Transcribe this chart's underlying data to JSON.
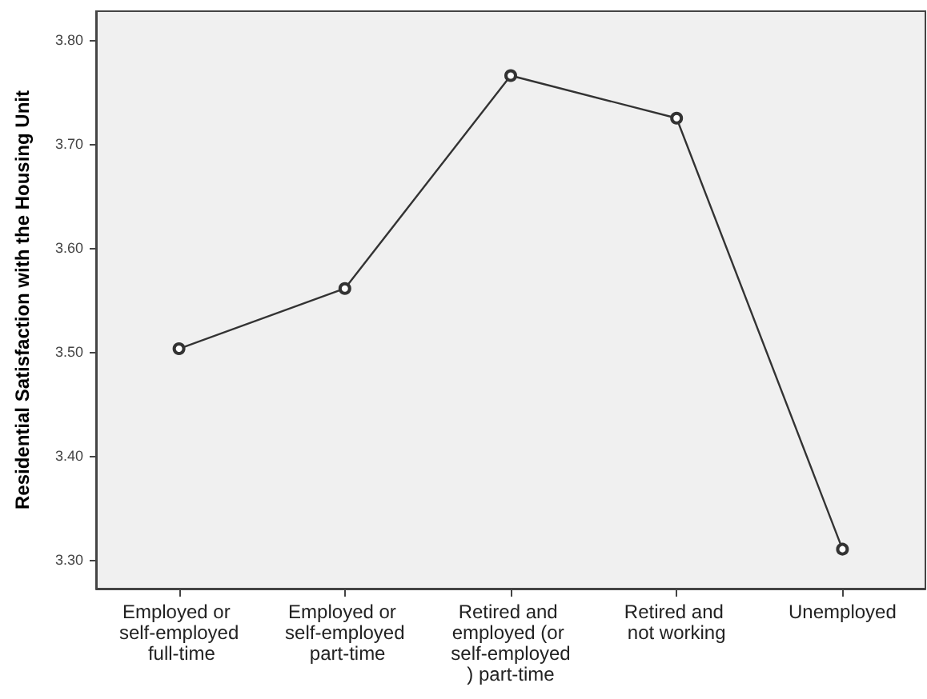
{
  "chart_data": {
    "type": "line",
    "ylabel": "Residential Satisfaction with the Housing Unit",
    "categories": [
      "Employed or self-employed full-time",
      "Employed or self-employed part-time",
      "Retired and employed (or self-employed) part-time",
      "Retired and not working",
      "Unemployed"
    ],
    "series": [
      {
        "color": "#333333",
        "values": [
          3.503,
          3.561,
          3.766,
          3.725,
          3.31
        ]
      }
    ],
    "ylim": [
      3.272,
      3.828
    ],
    "yticks": [
      {
        "value": 3.3,
        "label": "3.30"
      },
      {
        "value": 3.4,
        "label": "3.40"
      },
      {
        "value": 3.5,
        "label": "3.50"
      },
      {
        "value": 3.6,
        "label": "3.60"
      },
      {
        "value": 3.7,
        "label": "3.70"
      },
      {
        "value": 3.8,
        "label": "3.80"
      }
    ],
    "grid": false,
    "marker": "circle",
    "line_style": "solid"
  }
}
